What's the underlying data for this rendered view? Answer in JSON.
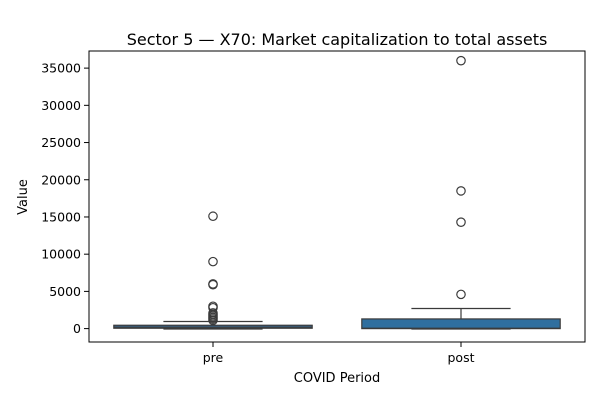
{
  "chart_data": {
    "type": "box",
    "title": "Sector 5 — X70: Market capitalization to total assets",
    "xlabel": "COVID Period",
    "ylabel": "Value",
    "categories": [
      "pre",
      "post"
    ],
    "y_ticks": [
      0,
      5000,
      10000,
      15000,
      20000,
      25000,
      30000,
      35000
    ],
    "y_tick_labels": [
      "0",
      "5000",
      "10000",
      "15000",
      "20000",
      "25000",
      "30000",
      "35000"
    ],
    "ylim": [
      -1800,
      37300
    ],
    "grid": false,
    "boxes": [
      {
        "category": "pre",
        "whisker_low": -50,
        "q1": 50,
        "median": 200,
        "q3": 450,
        "whisker_high": 950,
        "outliers": [
          15100,
          9000,
          6000,
          5900,
          3000,
          2800,
          2100,
          1900,
          1700,
          1500,
          1300,
          1100
        ]
      },
      {
        "category": "post",
        "whisker_low": -50,
        "q1": 0,
        "median": 50,
        "q3": 1300,
        "whisker_high": 2700,
        "outliers": [
          36000,
          18500,
          14300,
          4600
        ]
      }
    ],
    "colors": {
      "pre_box": "#3b76a8",
      "post_box": "#2f6f9f",
      "line": "#3a3a3a"
    }
  }
}
